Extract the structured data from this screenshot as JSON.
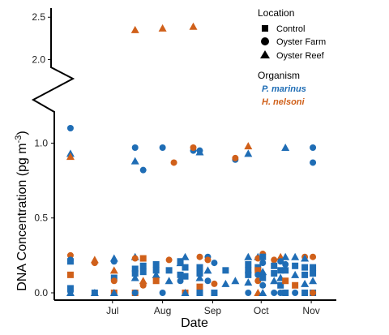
{
  "chart_data": {
    "type": "scatter",
    "title": "",
    "xlabel": "Date",
    "ylabel": "DNA Concentration (pg m",
    "ylabel_sup": "-3",
    "ylabel_close": ")",
    "x_ticks": [
      "Jul",
      "Aug",
      "Sep",
      "Oct",
      "Nov"
    ],
    "x_tick_dates": [
      "2019-07-01",
      "2019-08-01",
      "2019-09-01",
      "2019-10-01",
      "2019-11-01"
    ],
    "xlim": [
      "2019-05-26",
      "2019-11-15"
    ],
    "y_ticks_lower": [
      "0.0",
      "0.5",
      "1.0"
    ],
    "y_ticks_upper": [
      "2.0",
      "2.5"
    ],
    "ylim_lower": [
      0,
      1.1
    ],
    "ylim_upper": [
      1.9,
      2.55
    ],
    "axis_break": true,
    "grid": false,
    "legend_position": "top-right",
    "legend": {
      "location_title": "Location",
      "locations": [
        {
          "key": "control",
          "label": "Control",
          "shape": "square"
        },
        {
          "key": "oyster_farm",
          "label": "Oyster Farm",
          "shape": "circle"
        },
        {
          "key": "oyster_reef",
          "label": "Oyster Reef",
          "shape": "triangle"
        }
      ],
      "organism_title": "Organism",
      "organisms": [
        {
          "key": "pm",
          "label": "P. marinus",
          "color": "#1f6db5"
        },
        {
          "key": "hn",
          "label": "H. nelsoni",
          "color": "#d0601a"
        }
      ]
    },
    "points": [
      [
        "2019-06-05",
        "farm",
        "pm",
        1.1
      ],
      [
        "2019-06-05",
        "reef",
        "pm",
        0.93
      ],
      [
        "2019-06-05",
        "reef",
        "hn",
        0.91
      ],
      [
        "2019-06-05",
        "farm",
        "hn",
        0.25
      ],
      [
        "2019-06-05",
        "farm",
        "pm",
        0.22
      ],
      [
        "2019-06-05",
        "control",
        "pm",
        0.21
      ],
      [
        "2019-06-05",
        "control",
        "hn",
        0.12
      ],
      [
        "2019-06-05",
        "control",
        "pm",
        0.03
      ],
      [
        "2019-06-05",
        "farm",
        "pm",
        0.01
      ],
      [
        "2019-06-05",
        "reef",
        "pm",
        0.0
      ],
      [
        "2019-06-20",
        "reef",
        "hn",
        0.22
      ],
      [
        "2019-06-20",
        "farm",
        "hn",
        0.2
      ],
      [
        "2019-06-20",
        "control",
        "pm",
        0.0
      ],
      [
        "2019-06-20",
        "reef",
        "pm",
        0.0
      ],
      [
        "2019-07-02",
        "reef",
        "pm",
        0.23
      ],
      [
        "2019-07-02",
        "farm",
        "pm",
        0.21
      ],
      [
        "2019-07-02",
        "reef",
        "hn",
        0.15
      ],
      [
        "2019-07-02",
        "control",
        "pm",
        0.1
      ],
      [
        "2019-07-02",
        "farm",
        "hn",
        0.08
      ],
      [
        "2019-07-02",
        "control",
        "hn",
        0.0
      ],
      [
        "2019-07-02",
        "reef",
        "pm",
        0.0
      ],
      [
        "2019-07-15",
        "reef",
        "hn",
        2.35
      ],
      [
        "2019-07-15",
        "farm",
        "pm",
        0.97
      ],
      [
        "2019-07-15",
        "reef",
        "pm",
        0.88
      ],
      [
        "2019-07-15",
        "reef",
        "pm",
        0.24
      ],
      [
        "2019-07-15",
        "farm",
        "hn",
        0.23
      ],
      [
        "2019-07-15",
        "control",
        "pm",
        0.16
      ],
      [
        "2019-07-15",
        "control",
        "pm",
        0.13
      ],
      [
        "2019-07-15",
        "reef",
        "pm",
        0.1
      ],
      [
        "2019-07-15",
        "control",
        "hn",
        0.0
      ],
      [
        "2019-07-15",
        "farm",
        "pm",
        0.0
      ],
      [
        "2019-07-20",
        "farm",
        "pm",
        0.82
      ],
      [
        "2019-07-20",
        "control",
        "hn",
        0.23
      ],
      [
        "2019-07-20",
        "control",
        "pm",
        0.18
      ],
      [
        "2019-07-20",
        "control",
        "pm",
        0.14
      ],
      [
        "2019-07-20",
        "reef",
        "hn",
        0.08
      ],
      [
        "2019-07-20",
        "farm",
        "hn",
        0.05
      ],
      [
        "2019-07-28",
        "control",
        "pm",
        0.19
      ],
      [
        "2019-07-28",
        "control",
        "pm",
        0.15
      ],
      [
        "2019-07-28",
        "reef",
        "pm",
        0.12
      ],
      [
        "2019-07-28",
        "control",
        "hn",
        0.08
      ],
      [
        "2019-08-01",
        "farm",
        "pm",
        0.97
      ],
      [
        "2019-08-01",
        "reef",
        "hn",
        2.37
      ],
      [
        "2019-08-01",
        "farm",
        "pm",
        0.0
      ],
      [
        "2019-08-05",
        "farm",
        "hn",
        0.22
      ],
      [
        "2019-08-05",
        "control",
        "pm",
        0.15
      ],
      [
        "2019-08-05",
        "reef",
        "pm",
        0.08
      ],
      [
        "2019-08-08",
        "farm",
        "hn",
        0.87
      ],
      [
        "2019-08-12",
        "control",
        "pm",
        0.21
      ],
      [
        "2019-08-12",
        "reef",
        "pm",
        0.2
      ],
      [
        "2019-08-12",
        "control",
        "pm",
        0.12
      ],
      [
        "2019-08-12",
        "farm",
        "pm",
        0.08
      ],
      [
        "2019-08-15",
        "reef",
        "pm",
        0.24
      ],
      [
        "2019-08-15",
        "control",
        "pm",
        0.17
      ],
      [
        "2019-08-15",
        "control",
        "pm",
        0.11
      ],
      [
        "2019-08-15",
        "control",
        "hn",
        0.0
      ],
      [
        "2019-08-15",
        "reef",
        "pm",
        0.0
      ],
      [
        "2019-08-20",
        "farm",
        "pm",
        0.95
      ],
      [
        "2019-08-20",
        "farm",
        "hn",
        0.97
      ],
      [
        "2019-08-20",
        "reef",
        "hn",
        2.39
      ],
      [
        "2019-08-24",
        "farm",
        "pm",
        0.95
      ],
      [
        "2019-08-24",
        "reef",
        "pm",
        0.94
      ],
      [
        "2019-08-24",
        "farm",
        "hn",
        0.24
      ],
      [
        "2019-08-24",
        "control",
        "pm",
        0.17
      ],
      [
        "2019-08-24",
        "control",
        "pm",
        0.13
      ],
      [
        "2019-08-24",
        "reef",
        "pm",
        0.1
      ],
      [
        "2019-08-24",
        "control",
        "hn",
        0.04
      ],
      [
        "2019-08-24",
        "control",
        "pm",
        0.0
      ],
      [
        "2019-08-29",
        "farm",
        "pm",
        0.24
      ],
      [
        "2019-08-29",
        "farm",
        "hn",
        0.22
      ],
      [
        "2019-08-29",
        "reef",
        "pm",
        0.15
      ],
      [
        "2019-08-29",
        "farm",
        "pm",
        0.08
      ],
      [
        "2019-09-02",
        "farm",
        "pm",
        0.2
      ],
      [
        "2019-09-02",
        "farm",
        "hn",
        0.06
      ],
      [
        "2019-09-02",
        "control",
        "pm",
        0.0
      ],
      [
        "2019-09-09",
        "control",
        "pm",
        0.15
      ],
      [
        "2019-09-09",
        "reef",
        "pm",
        0.06
      ],
      [
        "2019-09-15",
        "farm",
        "pm",
        0.89
      ],
      [
        "2019-09-15",
        "farm",
        "hn",
        0.9
      ],
      [
        "2019-09-15",
        "reef",
        "pm",
        0.08
      ],
      [
        "2019-09-23",
        "reef",
        "hn",
        0.98
      ],
      [
        "2019-09-23",
        "reef",
        "pm",
        0.93
      ],
      [
        "2019-09-23",
        "reef",
        "pm",
        0.24
      ],
      [
        "2019-09-23",
        "control",
        "pm",
        0.19
      ],
      [
        "2019-09-23",
        "control",
        "pm",
        0.15
      ],
      [
        "2019-09-23",
        "control",
        "pm",
        0.12
      ],
      [
        "2019-09-23",
        "reef",
        "pm",
        0.07
      ],
      [
        "2019-09-23",
        "farm",
        "pm",
        0.0
      ],
      [
        "2019-09-29",
        "reef",
        "pm",
        0.24
      ],
      [
        "2019-09-29",
        "farm",
        "hn",
        0.23
      ],
      [
        "2019-09-29",
        "control",
        "pm",
        0.17
      ],
      [
        "2019-09-29",
        "control",
        "hn",
        0.15
      ],
      [
        "2019-09-29",
        "farm",
        "pm",
        0.12
      ],
      [
        "2019-09-29",
        "farm",
        "hn",
        0.08
      ],
      [
        "2019-09-29",
        "reef",
        "hn",
        0.0
      ],
      [
        "2019-10-02",
        "farm",
        "hn",
        0.26
      ],
      [
        "2019-10-02",
        "control",
        "pm",
        0.24
      ],
      [
        "2019-10-02",
        "farm",
        "pm",
        0.2
      ],
      [
        "2019-10-02",
        "reef",
        "pm",
        0.14
      ],
      [
        "2019-10-02",
        "control",
        "pm",
        0.1
      ],
      [
        "2019-10-02",
        "farm",
        "pm",
        0.05
      ],
      [
        "2019-10-02",
        "reef",
        "pm",
        0.0
      ],
      [
        "2019-10-09",
        "farm",
        "hn",
        0.22
      ],
      [
        "2019-10-09",
        "control",
        "pm",
        0.18
      ],
      [
        "2019-10-09",
        "control",
        "pm",
        0.13
      ],
      [
        "2019-10-09",
        "reef",
        "pm",
        0.08
      ],
      [
        "2019-10-09",
        "farm",
        "pm",
        0.0
      ],
      [
        "2019-10-13",
        "reef",
        "hn",
        0.24
      ],
      [
        "2019-10-13",
        "farm",
        "pm",
        0.21
      ],
      [
        "2019-10-13",
        "control",
        "pm",
        0.15
      ],
      [
        "2019-10-13",
        "reef",
        "pm",
        0.1
      ],
      [
        "2019-10-13",
        "control",
        "pm",
        0.05
      ],
      [
        "2019-10-13",
        "farm",
        "pm",
        0.0
      ],
      [
        "2019-10-16",
        "reef",
        "pm",
        0.97
      ],
      [
        "2019-10-16",
        "reef",
        "pm",
        0.24
      ],
      [
        "2019-10-16",
        "farm",
        "pm",
        0.19
      ],
      [
        "2019-10-16",
        "control",
        "pm",
        0.15
      ],
      [
        "2019-10-16",
        "control",
        "hn",
        0.08
      ],
      [
        "2019-10-16",
        "control",
        "pm",
        0.0
      ],
      [
        "2019-10-22",
        "reef",
        "pm",
        0.24
      ],
      [
        "2019-10-22",
        "control",
        "pm",
        0.18
      ],
      [
        "2019-10-22",
        "reef",
        "pm",
        0.12
      ],
      [
        "2019-10-22",
        "control",
        "hn",
        0.05
      ],
      [
        "2019-10-22",
        "farm",
        "pm",
        0.0
      ],
      [
        "2019-10-28",
        "farm",
        "hn",
        0.24
      ],
      [
        "2019-10-28",
        "reef",
        "pm",
        0.23
      ],
      [
        "2019-10-28",
        "control",
        "pm",
        0.17
      ],
      [
        "2019-10-28",
        "control",
        "pm",
        0.12
      ],
      [
        "2019-10-28",
        "reef",
        "pm",
        0.06
      ],
      [
        "2019-10-28",
        "control",
        "pm",
        0.0
      ],
      [
        "2019-11-02",
        "farm",
        "pm",
        0.97
      ],
      [
        "2019-11-02",
        "farm",
        "pm",
        0.87
      ],
      [
        "2019-11-02",
        "farm",
        "hn",
        0.24
      ],
      [
        "2019-11-02",
        "control",
        "pm",
        0.17
      ],
      [
        "2019-11-02",
        "control",
        "pm",
        0.13
      ],
      [
        "2019-11-02",
        "reef",
        "pm",
        0.08
      ],
      [
        "2019-11-02",
        "control",
        "pm",
        0.0
      ],
      [
        "2019-11-02",
        "farm",
        "hn",
        0.0
      ]
    ]
  }
}
